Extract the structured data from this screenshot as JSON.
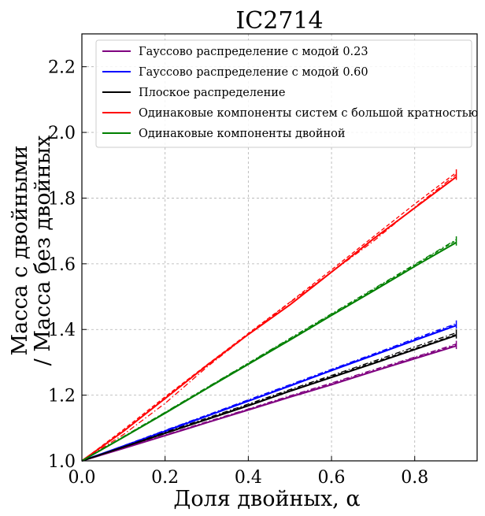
{
  "chart_data": {
    "type": "line",
    "title": "IC2714",
    "xlabel": "Доля двойных, α",
    "ylabel_line1": "Масса с двойными",
    "ylabel_line2": "/ Масса без двойных",
    "xlim": [
      0.0,
      0.95
    ],
    "ylim": [
      1.0,
      2.3
    ],
    "xticks": [
      0.0,
      0.2,
      0.4,
      0.6,
      0.8
    ],
    "xtick_labels": [
      "0.0",
      "0.2",
      "0.4",
      "0.6",
      "0.8"
    ],
    "yticks": [
      1.0,
      1.2,
      1.4,
      1.6,
      1.8,
      2.0,
      2.2
    ],
    "ytick_labels": [
      "1.0",
      "1.2",
      "1.4",
      "1.6",
      "1.8",
      "2.0",
      "2.2"
    ],
    "grid": true,
    "legend_position": "top-left",
    "x": [
      0.0,
      0.1,
      0.2,
      0.3,
      0.4,
      0.5,
      0.6,
      0.7,
      0.8,
      0.9
    ],
    "series": [
      {
        "name": "Гауссово распределение с модой 0.23",
        "color": "#800080",
        "values": [
          1.0,
          1.038,
          1.077,
          1.116,
          1.155,
          1.194,
          1.232,
          1.272,
          1.311,
          1.35
        ],
        "dashed": [
          1.0,
          1.039,
          1.078,
          1.117,
          1.157,
          1.196,
          1.235,
          1.274,
          1.314,
          1.353
        ],
        "dashdot": [
          1.0,
          1.04,
          1.079,
          1.119,
          1.158,
          1.198,
          1.237,
          1.277,
          1.316,
          1.356
        ]
      },
      {
        "name": "Гауссово распределение с модой 0.60",
        "color": "#0000ff",
        "values": [
          1.0,
          1.045,
          1.09,
          1.136,
          1.182,
          1.228,
          1.275,
          1.321,
          1.367,
          1.412
        ],
        "dashed": [
          1.0,
          1.046,
          1.092,
          1.138,
          1.184,
          1.23,
          1.277,
          1.323,
          1.369,
          1.415
        ],
        "dashdot": [
          1.0,
          1.046,
          1.093,
          1.139,
          1.186,
          1.232,
          1.279,
          1.325,
          1.372,
          1.418
        ]
      },
      {
        "name": "Плоское распределение",
        "color": "#000000",
        "values": [
          1.0,
          1.042,
          1.084,
          1.126,
          1.168,
          1.212,
          1.254,
          1.296,
          1.339,
          1.382
        ],
        "dashed": [
          1.0,
          1.043,
          1.085,
          1.128,
          1.17,
          1.214,
          1.257,
          1.299,
          1.342,
          1.385
        ],
        "dashdot": [
          1.0,
          1.043,
          1.087,
          1.13,
          1.173,
          1.217,
          1.26,
          1.303,
          1.347,
          1.39
        ]
      },
      {
        "name": "Одинаковые компоненты систем с большой кратностью",
        "color": "#ff0000",
        "values": [
          1.0,
          1.09,
          1.19,
          1.29,
          1.385,
          1.475,
          1.575,
          1.675,
          1.77,
          1.865
        ],
        "dashed": [
          1.0,
          1.095,
          1.195,
          1.292,
          1.388,
          1.483,
          1.582,
          1.682,
          1.782,
          1.878
        ],
        "dashdot": [
          1.0,
          1.08,
          1.175,
          1.285,
          1.385,
          1.482,
          1.575,
          1.668,
          1.772,
          1.872
        ]
      },
      {
        "name": "Одинаковые компоненты двойной",
        "color": "#008000",
        "values": [
          1.0,
          1.072,
          1.145,
          1.22,
          1.294,
          1.368,
          1.443,
          1.517,
          1.592,
          1.665
        ],
        "dashed": [
          1.0,
          1.073,
          1.147,
          1.222,
          1.297,
          1.371,
          1.446,
          1.521,
          1.596,
          1.671
        ],
        "dashdot": [
          1.0,
          1.074,
          1.148,
          1.223,
          1.298,
          1.373,
          1.448,
          1.523,
          1.598,
          1.674
        ]
      }
    ]
  }
}
